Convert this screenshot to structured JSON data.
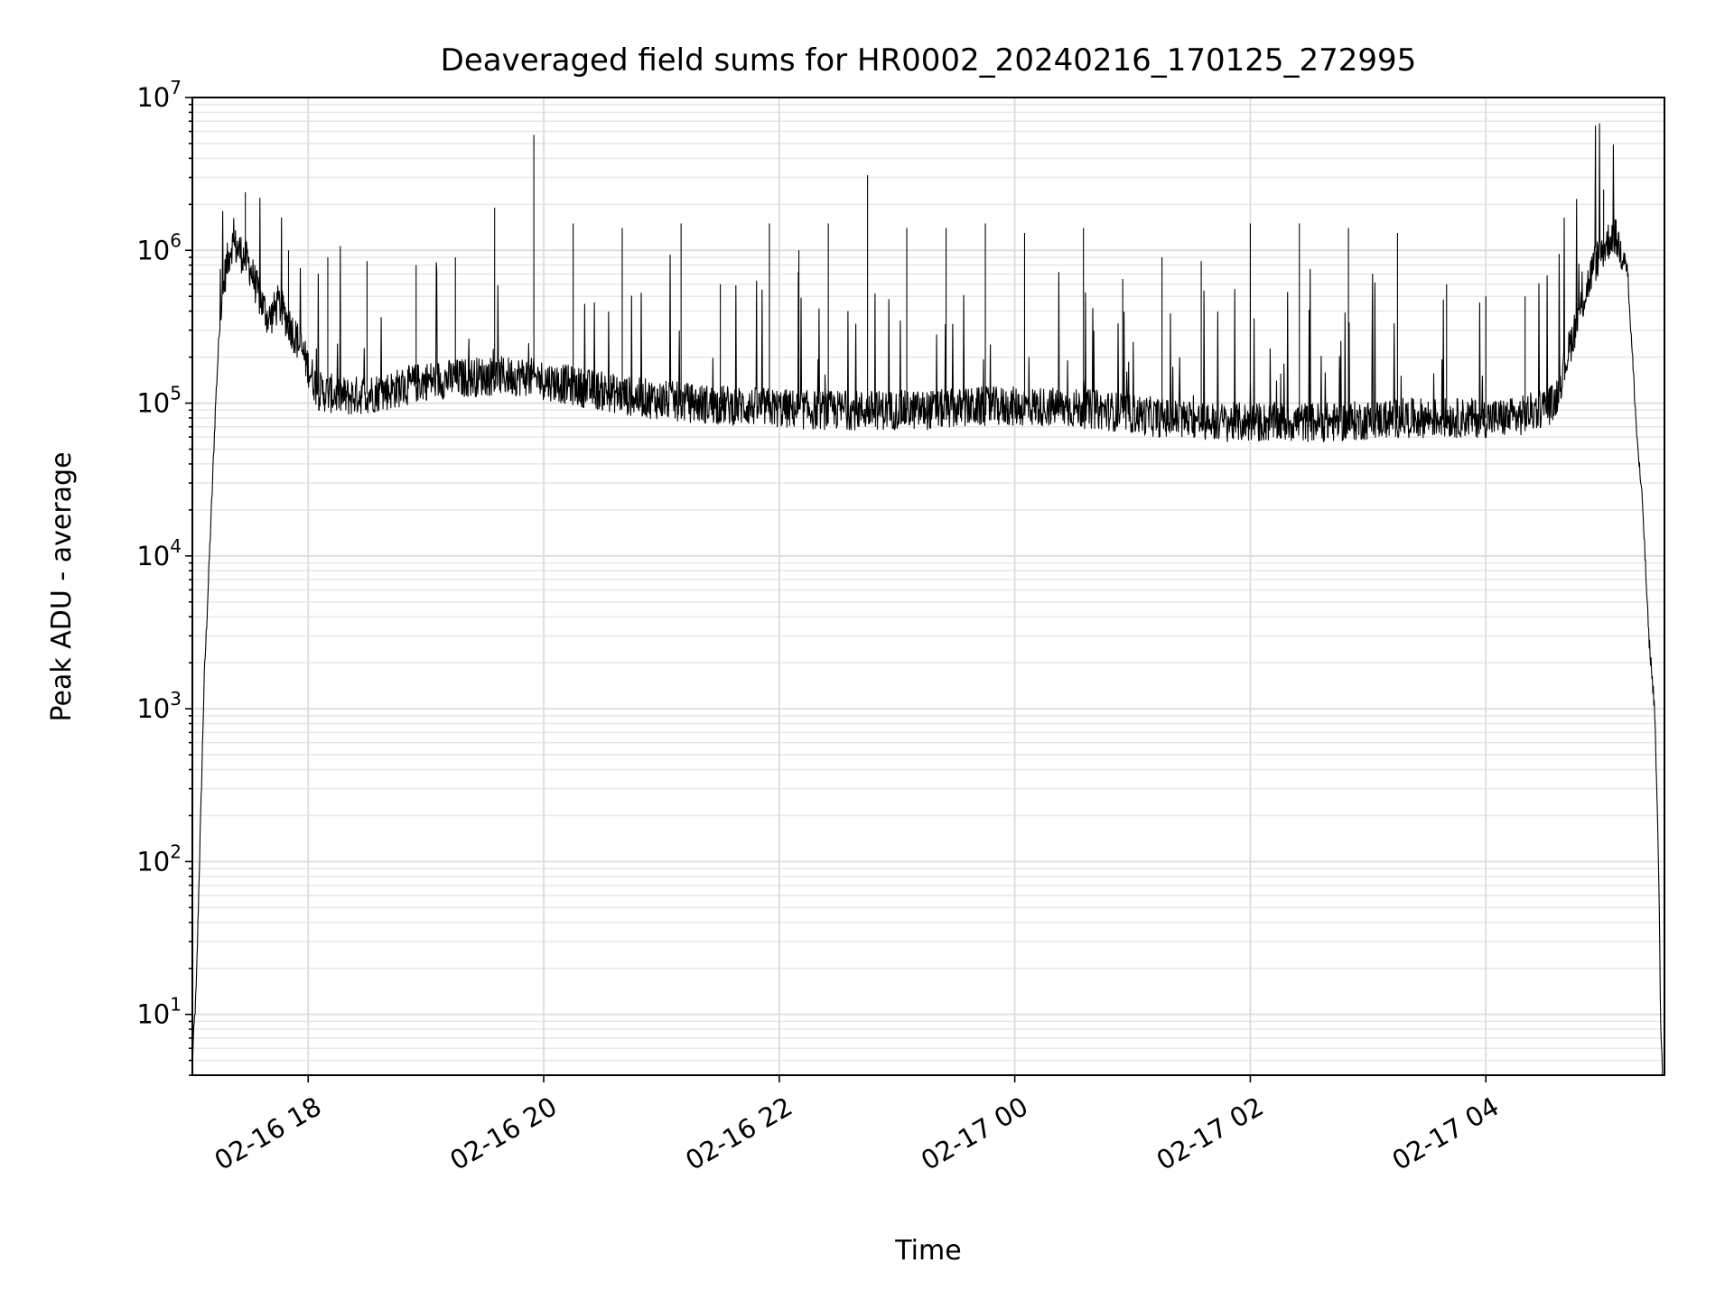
{
  "chart_data": {
    "type": "line",
    "title": "Deaveraged field sums for HR0002_20240216_170125_272995",
    "xlabel": "Time",
    "ylabel": "Peak ADU - average",
    "yscale": "log",
    "ylim": [
      4,
      10000000
    ],
    "xlim": [
      "2024-02-16 17:01",
      "2024-02-17 05:31"
    ],
    "grid": "both",
    "color": "#000000",
    "x_ticks": [
      {
        "value": "2024-02-16 18:00",
        "label": "02-16 18"
      },
      {
        "value": "2024-02-16 20:00",
        "label": "02-16 20"
      },
      {
        "value": "2024-02-16 22:00",
        "label": "02-16 22"
      },
      {
        "value": "2024-02-17 00:00",
        "label": "02-17 00"
      },
      {
        "value": "2024-02-17 02:00",
        "label": "02-17 02"
      },
      {
        "value": "2024-02-17 04:00",
        "label": "02-17 04"
      }
    ],
    "y_ticks": [
      {
        "value": 10,
        "base": "10",
        "exp": "1"
      },
      {
        "value": 100,
        "base": "10",
        "exp": "2"
      },
      {
        "value": 1000,
        "base": "10",
        "exp": "3"
      },
      {
        "value": 10000,
        "base": "10",
        "exp": "4"
      },
      {
        "value": 100000,
        "base": "10",
        "exp": "5"
      },
      {
        "value": 1000000,
        "base": "10",
        "exp": "6"
      },
      {
        "value": 10000000,
        "base": "10",
        "exp": "7"
      }
    ],
    "series": [
      {
        "x": [
          "2024-02-16 17:01",
          "2024-02-16 17:03",
          "2024-02-16 17:05",
          "2024-02-16 17:07",
          "2024-02-16 17:09",
          "2024-02-16 17:11",
          "2024-02-16 17:13",
          "2024-02-16 17:15",
          "2024-02-16 17:18",
          "2024-02-16 17:21",
          "2024-02-16 17:25",
          "2024-02-16 17:30",
          "2024-02-16 17:35",
          "2024-02-16 17:40",
          "2024-02-16 17:45",
          "2024-02-16 17:55",
          "2024-02-16 18:05",
          "2024-02-16 18:20",
          "2024-02-16 18:40",
          "2024-02-16 19:00",
          "2024-02-16 19:30",
          "2024-02-16 19:50",
          "2024-02-16 20:15",
          "2024-02-16 20:45",
          "2024-02-16 21:15",
          "2024-02-16 21:45",
          "2024-02-16 22:15",
          "2024-02-16 22:45",
          "2024-02-16 23:15",
          "2024-02-16 23:45",
          "2024-02-17 00:15",
          "2024-02-17 00:45",
          "2024-02-17 01:15",
          "2024-02-17 01:45",
          "2024-02-17 02:15",
          "2024-02-17 02:45",
          "2024-02-17 03:15",
          "2024-02-17 03:45",
          "2024-02-17 04:15",
          "2024-02-17 04:35",
          "2024-02-17 04:45",
          "2024-02-17 04:55",
          "2024-02-17 05:05",
          "2024-02-17 05:12",
          "2024-02-17 05:17",
          "2024-02-17 05:20",
          "2024-02-17 05:23",
          "2024-02-17 05:26",
          "2024-02-17 05:28",
          "2024-02-17 05:29",
          "2024-02-17 05:30"
        ],
        "y": [
          5,
          15,
          150,
          1500,
          6000,
          25000,
          110000,
          350000,
          750000,
          1100000,
          1000000,
          800000,
          500000,
          350000,
          450000,
          250000,
          120000,
          110000,
          120000,
          140000,
          150000,
          150000,
          130000,
          110000,
          100000,
          95000,
          90000,
          90000,
          90000,
          95000,
          95000,
          90000,
          80000,
          75000,
          75000,
          75000,
          80000,
          80000,
          80000,
          100000,
          300000,
          800000,
          1300000,
          800000,
          60000,
          20000,
          3000,
          1000,
          100,
          10,
          4
        ],
        "spikes": [
          {
            "x": "2024-02-16 17:28",
            "y": 2400000
          },
          {
            "x": "2024-02-16 17:50",
            "y": 1000000
          },
          {
            "x": "2024-02-16 18:10",
            "y": 900000
          },
          {
            "x": "2024-02-16 18:30",
            "y": 850000
          },
          {
            "x": "2024-02-16 18:55",
            "y": 800000
          },
          {
            "x": "2024-02-16 19:15",
            "y": 900000
          },
          {
            "x": "2024-02-16 19:35",
            "y": 1900000
          },
          {
            "x": "2024-02-16 19:55",
            "y": 5700000
          },
          {
            "x": "2024-02-16 20:15",
            "y": 1500000
          },
          {
            "x": "2024-02-16 20:40",
            "y": 1400000
          },
          {
            "x": "2024-02-16 21:10",
            "y": 1500000
          },
          {
            "x": "2024-02-16 21:30",
            "y": 600000
          },
          {
            "x": "2024-02-16 21:55",
            "y": 1500000
          },
          {
            "x": "2024-02-16 22:10",
            "y": 1000000
          },
          {
            "x": "2024-02-16 22:25",
            "y": 1500000
          },
          {
            "x": "2024-02-16 22:45",
            "y": 3100000
          },
          {
            "x": "2024-02-16 23:05",
            "y": 1400000
          },
          {
            "x": "2024-02-16 23:25",
            "y": 1400000
          },
          {
            "x": "2024-02-16 23:45",
            "y": 1500000
          },
          {
            "x": "2024-02-17 00:05",
            "y": 1300000
          },
          {
            "x": "2024-02-17 00:35",
            "y": 1400000
          },
          {
            "x": "2024-02-17 00:55",
            "y": 650000
          },
          {
            "x": "2024-02-17 01:15",
            "y": 900000
          },
          {
            "x": "2024-02-17 01:35",
            "y": 850000
          },
          {
            "x": "2024-02-17 02:00",
            "y": 1500000
          },
          {
            "x": "2024-02-17 02:25",
            "y": 1500000
          },
          {
            "x": "2024-02-17 02:50",
            "y": 1400000
          },
          {
            "x": "2024-02-17 03:15",
            "y": 1300000
          },
          {
            "x": "2024-02-17 03:40",
            "y": 600000
          },
          {
            "x": "2024-02-17 04:00",
            "y": 500000
          },
          {
            "x": "2024-02-17 04:20",
            "y": 500000
          },
          {
            "x": "2024-02-17 05:00",
            "y": 2500000
          }
        ]
      }
    ]
  }
}
